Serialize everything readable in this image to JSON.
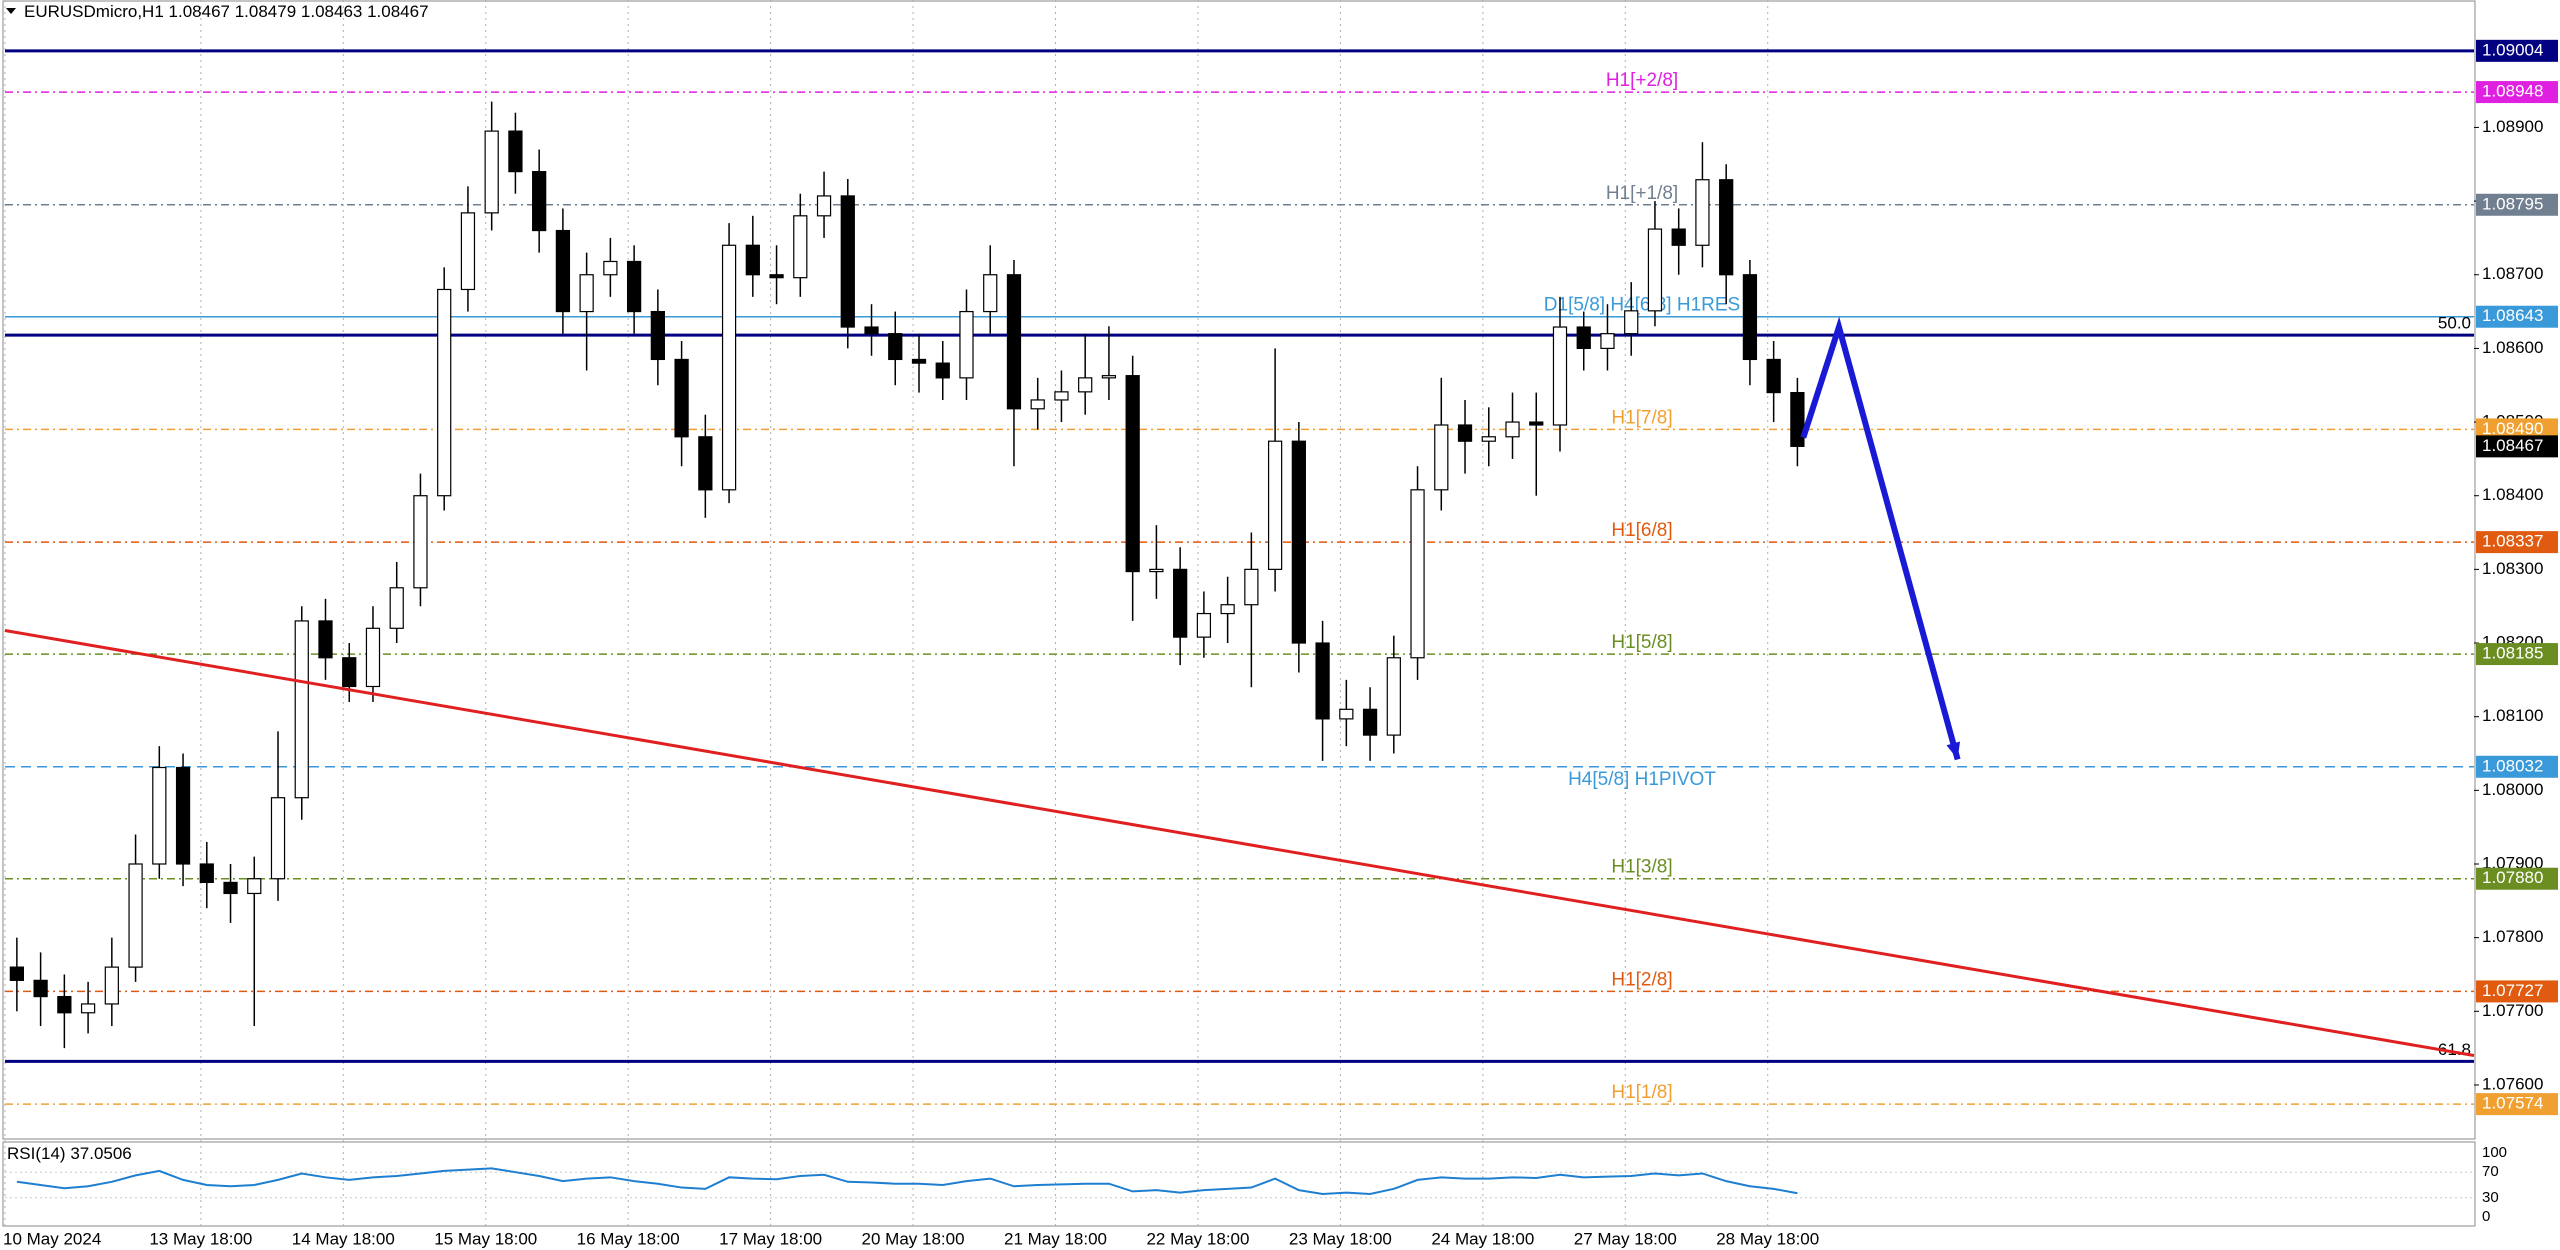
{
  "chart_data": {
    "type": "candlestick",
    "title": "EURUSDmicro,H1",
    "quote": {
      "open": 1.08467,
      "high": 1.08479,
      "low": 1.08463,
      "close": 1.08467
    },
    "xlim": [
      0,
      416
    ],
    "ylim": [
      1.07528,
      1.09073
    ],
    "xticks": [
      {
        "value": 0,
        "label": "10 May 2024"
      },
      {
        "value": 33,
        "label": "13 May 18:00"
      },
      {
        "value": 57,
        "label": "14 May 18:00"
      },
      {
        "value": 81,
        "label": "15 May 18:00"
      },
      {
        "value": 105,
        "label": "16 May 18:00"
      },
      {
        "value": 129,
        "label": "17 May 18:00"
      },
      {
        "value": 153,
        "label": "20 May 18:00"
      },
      {
        "value": 177,
        "label": "21 May 18:00"
      },
      {
        "value": 201,
        "label": "22 May 18:00"
      },
      {
        "value": 225,
        "label": "23 May 18:00"
      },
      {
        "value": 249,
        "label": "24 May 18:00"
      },
      {
        "value": 273,
        "label": "27 May 18:00"
      },
      {
        "value": 297,
        "label": "28 May 18:00"
      }
    ],
    "yticks": [
      {
        "value": 1.076,
        "label": "1.07600"
      },
      {
        "value": 1.077,
        "label": "1.07700"
      },
      {
        "value": 1.078,
        "label": "1.07800"
      },
      {
        "value": 1.079,
        "label": "1.07900"
      },
      {
        "value": 1.08,
        "label": "1.08000"
      },
      {
        "value": 1.081,
        "label": "1.08100"
      },
      {
        "value": 1.082,
        "label": "1.08200"
      },
      {
        "value": 1.083,
        "label": "1.08300"
      },
      {
        "value": 1.084,
        "label": "1.08400"
      },
      {
        "value": 1.085,
        "label": "1.08500"
      },
      {
        "value": 1.086,
        "label": "1.08600"
      },
      {
        "value": 1.087,
        "label": "1.08700"
      },
      {
        "value": 1.088,
        "label": "1.08800"
      },
      {
        "value": 1.089,
        "label": "1.08900"
      }
    ],
    "grid": true,
    "up_color": "#ffffff",
    "down_color": "#000000",
    "x": [
      0,
      4,
      8,
      12,
      16,
      20,
      24,
      28,
      32,
      36,
      40,
      44,
      48,
      52,
      56,
      60,
      64,
      68,
      72,
      76,
      80,
      84,
      88,
      92,
      96,
      100,
      104,
      108,
      112,
      116,
      120,
      124,
      128,
      132,
      136,
      140,
      144,
      148,
      152,
      156,
      160,
      164,
      168,
      172,
      176,
      180,
      184,
      188,
      192,
      196,
      200,
      204,
      208,
      212,
      216,
      220,
      224,
      228,
      232,
      236,
      240,
      244,
      248,
      252,
      256,
      260,
      264,
      268,
      272,
      276,
      280,
      284,
      288,
      292,
      296,
      300
    ],
    "open": [
      1.0776,
      1.07742,
      1.0772,
      1.07698,
      1.0771,
      1.0776,
      1.079,
      1.08031,
      1.079,
      1.07875,
      1.0786,
      1.0788,
      1.0799,
      1.0823,
      1.0818,
      1.08141,
      1.0822,
      1.08275,
      1.084,
      1.0868,
      1.08784,
      1.08895,
      1.0884,
      1.0876,
      1.0865,
      1.087,
      1.08718,
      1.0865,
      1.08585,
      1.0848,
      1.08408,
      1.0874,
      1.087,
      1.08696,
      1.0878,
      1.08807,
      1.08629,
      1.0862,
      1.08585,
      1.0858,
      1.0856,
      1.0865,
      1.087,
      1.08518,
      1.0853,
      1.08541,
      1.0856,
      1.08563,
      1.08297,
      1.083,
      1.08208,
      1.0824,
      1.08252,
      1.083,
      1.08474,
      1.082,
      1.08097,
      1.0811,
      1.08075,
      1.0818,
      1.08408,
      1.08496,
      1.08474,
      1.0848,
      1.085,
      1.08496,
      1.08629,
      1.086,
      1.0862,
      1.08651,
      1.08762,
      1.0874,
      1.08829,
      1.087,
      1.08585,
      1.0854
    ],
    "high": [
      1.078,
      1.0778,
      1.0775,
      1.0774,
      1.078,
      1.0794,
      1.0806,
      1.0805,
      1.0793,
      1.079,
      1.0791,
      1.0808,
      1.0825,
      1.0826,
      1.082,
      1.0825,
      1.0831,
      1.0843,
      1.0871,
      1.0882,
      1.08935,
      1.0892,
      1.0887,
      1.0879,
      1.0873,
      1.0875,
      1.0874,
      1.0868,
      1.0861,
      1.0851,
      1.0877,
      1.0878,
      1.0874,
      1.0881,
      1.0884,
      1.0883,
      1.0866,
      1.0865,
      1.0862,
      1.0861,
      1.0868,
      1.0874,
      1.0872,
      1.0856,
      1.0857,
      1.0862,
      1.0863,
      1.0859,
      1.0836,
      1.0833,
      1.0827,
      1.0829,
      1.0835,
      1.086,
      1.085,
      1.0823,
      1.0815,
      1.0814,
      1.0821,
      1.0844,
      1.0856,
      1.0853,
      1.0852,
      1.0854,
      1.0854,
      1.0867,
      1.0865,
      1.0866,
      1.0869,
      1.088,
      1.0879,
      1.0888,
      1.0885,
      1.0872,
      1.0861,
      1.0856
    ],
    "low": [
      1.077,
      1.0768,
      1.0765,
      1.0767,
      1.0768,
      1.0774,
      1.0788,
      1.0787,
      1.0784,
      1.0782,
      1.0768,
      1.0785,
      1.0796,
      1.0815,
      1.0812,
      1.0812,
      1.082,
      1.0825,
      1.0838,
      1.0865,
      1.0876,
      1.0881,
      1.0873,
      1.0862,
      1.0857,
      1.0867,
      1.0862,
      1.0855,
      1.0844,
      1.0837,
      1.0839,
      1.0867,
      1.0866,
      1.0867,
      1.0875,
      1.086,
      1.0859,
      1.0855,
      1.0854,
      1.0853,
      1.0853,
      1.0862,
      1.0844,
      1.0849,
      1.085,
      1.0851,
      1.0853,
      1.0823,
      1.0826,
      1.0817,
      1.0818,
      1.082,
      1.0814,
      1.0827,
      1.0816,
      1.0804,
      1.0806,
      1.0804,
      1.0805,
      1.0815,
      1.0838,
      1.0843,
      1.0844,
      1.0845,
      1.084,
      1.0846,
      1.0857,
      1.0857,
      1.0859,
      1.0863,
      1.087,
      1.0871,
      1.0866,
      1.0855,
      1.085,
      1.0844
    ],
    "close": [
      1.07742,
      1.0772,
      1.07698,
      1.0771,
      1.0776,
      1.079,
      1.08031,
      1.079,
      1.07875,
      1.0786,
      1.0788,
      1.0799,
      1.0823,
      1.0818,
      1.08141,
      1.0822,
      1.08275,
      1.084,
      1.0868,
      1.08784,
      1.08895,
      1.0884,
      1.0876,
      1.0865,
      1.087,
      1.08718,
      1.0865,
      1.08585,
      1.0848,
      1.08408,
      1.0874,
      1.087,
      1.08696,
      1.0878,
      1.08807,
      1.08629,
      1.0862,
      1.08585,
      1.0858,
      1.0856,
      1.0865,
      1.087,
      1.08518,
      1.0853,
      1.08541,
      1.0856,
      1.08563,
      1.08297,
      1.083,
      1.08208,
      1.0824,
      1.08252,
      1.083,
      1.08474,
      1.082,
      1.08097,
      1.0811,
      1.08075,
      1.0818,
      1.08408,
      1.08496,
      1.08474,
      1.0848,
      1.085,
      1.08496,
      1.08629,
      1.086,
      1.0862,
      1.08651,
      1.08762,
      1.0874,
      1.08829,
      1.087,
      1.08585,
      1.0854,
      1.08467
    ],
    "levels": [
      {
        "value": 1.09004,
        "color": "#000080",
        "style": "solid"
      },
      {
        "name": "H1[+2/8]",
        "value": 1.08948,
        "color": "#e020e0",
        "style": "dashdot"
      },
      {
        "name": "H1[+1/8]",
        "value": 1.08795,
        "color": "#708090",
        "style": "dashdot"
      },
      {
        "name": "D1[5/8] H4[6/8] H1RES",
        "value": 1.08643,
        "color": "#3a9ad9",
        "style": "thin"
      },
      {
        "name": "H1[7/8]",
        "value": 1.0849,
        "value_label": "1.08490",
        "color": "#f0a030",
        "style": "dashdot"
      },
      {
        "name": "H1[6/8]",
        "value": 1.08337,
        "color": "#e05a10",
        "style": "dashdot"
      },
      {
        "name": "H1[5/8]",
        "value": 1.08185,
        "color": "#6b8e23",
        "style": "dashdot"
      },
      {
        "name": "H4[5/8] H1PIVOT",
        "value": 1.08032,
        "color": "#3a9ad9",
        "style": "dashed"
      },
      {
        "name": "H1[3/8]",
        "value": 1.0788,
        "value_label": "1.07880",
        "color": "#6b8e23",
        "style": "dashdot"
      },
      {
        "name": "H1[2/8]",
        "value": 1.07727,
        "color": "#e05a10",
        "style": "dashdot"
      },
      {
        "name": "H1[1/8]",
        "value": 1.07574,
        "color": "#f0a030",
        "style": "dashdot"
      }
    ],
    "fibo": [
      {
        "value": 1.08618,
        "label": "50.0"
      },
      {
        "value": 1.07632,
        "label": "61.8"
      }
    ],
    "fibo_color": "#000080",
    "trendline": {
      "x": [
        0,
        416
      ],
      "values": [
        1.08217,
        1.0764
      ],
      "color": "#e02020"
    },
    "forecast": {
      "x": [
        303,
        309,
        329
      ],
      "values": [
        1.08479,
        1.08629,
        1.08042
      ],
      "color": "#1a1ad6"
    },
    "rsi": {
      "label": "RSI(14)",
      "value": 37.0506,
      "color": "#1e7fd0",
      "ylim": [
        0,
        100
      ],
      "yticks": [
        100,
        70,
        30,
        0
      ],
      "values": [
        55,
        50,
        45,
        48,
        55,
        65,
        72,
        58,
        50,
        48,
        50,
        58,
        68,
        62,
        58,
        62,
        64,
        68,
        72,
        74,
        76,
        70,
        64,
        56,
        60,
        62,
        56,
        52,
        46,
        44,
        62,
        60,
        59,
        64,
        66,
        55,
        54,
        52,
        52,
        50,
        56,
        60,
        48,
        50,
        51,
        52,
        52,
        40,
        42,
        38,
        42,
        44,
        46,
        60,
        42,
        36,
        38,
        36,
        44,
        58,
        62,
        60,
        60,
        62,
        61,
        66,
        62,
        63,
        64,
        68,
        65,
        68,
        56,
        48,
        44,
        37.0506
      ]
    }
  }
}
